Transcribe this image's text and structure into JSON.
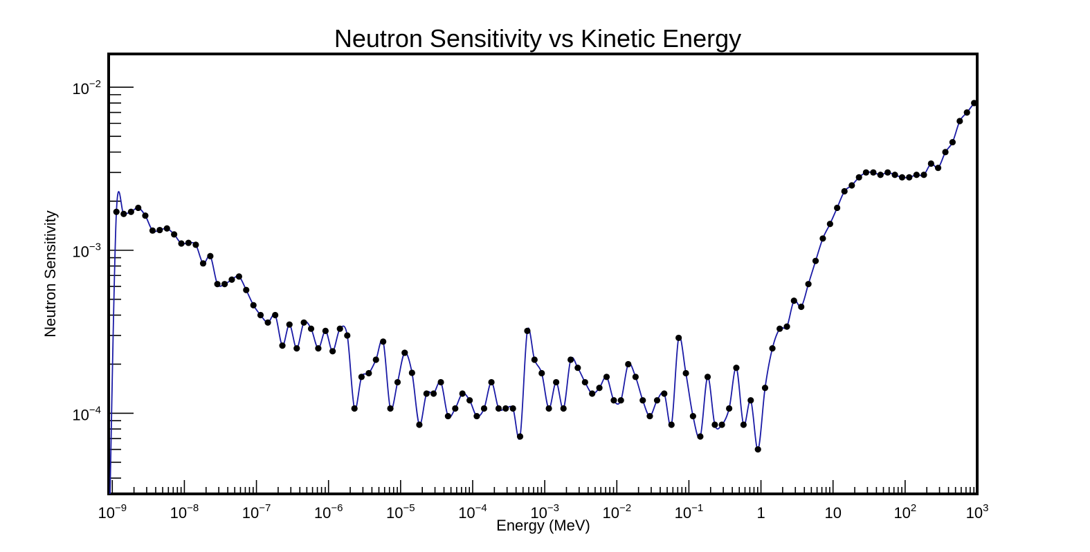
{
  "chart_data": {
    "type": "line",
    "title": "Neutron Sensitivity vs Kinetic Energy",
    "xlabel": "Energy (MeV)",
    "ylabel": "Neutron Sensitivity",
    "xscale": "log",
    "yscale": "log",
    "xlim": [
      8.9e-10,
      1000
    ],
    "ylim": [
      3.2e-05,
      0.016
    ],
    "x_tick_labels": [
      {
        "base": "10",
        "exp": "−9",
        "value": 1e-09
      },
      {
        "base": "10",
        "exp": "−8",
        "value": 1e-08
      },
      {
        "base": "10",
        "exp": "−7",
        "value": 1e-07
      },
      {
        "base": "10",
        "exp": "−6",
        "value": 1e-06
      },
      {
        "base": "10",
        "exp": "−5",
        "value": 1e-05
      },
      {
        "base": "10",
        "exp": "−4",
        "value": 0.0001
      },
      {
        "base": "10",
        "exp": "−3",
        "value": 0.001
      },
      {
        "base": "10",
        "exp": "−2",
        "value": 0.01
      },
      {
        "base": "10",
        "exp": "−1",
        "value": 0.1
      },
      {
        "base": "1",
        "exp": "",
        "value": 1
      },
      {
        "base": "10",
        "exp": "",
        "value": 10
      },
      {
        "base": "10",
        "exp": "2",
        "value": 100
      },
      {
        "base": "10",
        "exp": "3",
        "value": 1000
      }
    ],
    "y_tick_labels": [
      {
        "base": "10",
        "exp": "−4",
        "value": 0.0001
      },
      {
        "base": "10",
        "exp": "−3",
        "value": 0.001
      },
      {
        "base": "10",
        "exp": "−2",
        "value": 0.01
      }
    ],
    "grid": false,
    "legend": "none",
    "line_color": "#1a1aa6",
    "marker_color": "#000000",
    "series": [
      {
        "x": [
          1.14e-09,
          1.44e-09,
          1.82e-09,
          2.29e-09,
          2.87e-09,
          3.62e-09,
          4.55e-09,
          5.73e-09,
          7.21e-09,
          9.08e-09,
          1.14e-08,
          1.44e-08,
          1.82e-08,
          2.29e-08,
          2.87e-08,
          3.62e-08,
          4.55e-08,
          5.73e-08,
          7.21e-08,
          9.08e-08,
          1.14e-07,
          1.44e-07,
          1.82e-07,
          2.29e-07,
          2.87e-07,
          3.62e-07,
          4.55e-07,
          5.73e-07,
          7.21e-07,
          9.08e-07,
          1.14e-06,
          1.44e-06,
          1.82e-06,
          2.29e-06,
          2.87e-06,
          3.62e-06,
          4.55e-06,
          5.73e-06,
          7.21e-06,
          9.08e-06,
          1.14e-05,
          1.44e-05,
          1.82e-05,
          2.29e-05,
          2.87e-05,
          3.62e-05,
          4.55e-05,
          5.73e-05,
          7.21e-05,
          9.08e-05,
          0.000114,
          0.000144,
          0.000182,
          0.000229,
          0.000287,
          0.000362,
          0.000455,
          0.000573,
          0.000721,
          0.000908,
          0.00114,
          0.00144,
          0.00182,
          0.00229,
          0.00287,
          0.00362,
          0.00455,
          0.00573,
          0.00721,
          0.00908,
          0.0114,
          0.0144,
          0.0182,
          0.0229,
          0.0287,
          0.0362,
          0.0455,
          0.0573,
          0.0721,
          0.0908,
          0.114,
          0.144,
          0.182,
          0.229,
          0.287,
          0.362,
          0.455,
          0.573,
          0.721,
          0.908,
          1.14,
          1.44,
          1.82,
          2.29,
          2.87,
          3.62,
          4.55,
          5.73,
          7.21,
          9.08,
          11.4,
          14.4,
          18.2,
          22.9,
          28.7,
          36.2,
          45.5,
          57.3,
          72.1,
          90.8,
          114,
          144,
          182,
          229,
          287,
          362,
          455,
          573,
          721,
          908
        ],
        "y": [
          0.00172,
          0.00167,
          0.00172,
          0.00182,
          0.00163,
          0.00132,
          0.00133,
          0.00136,
          0.00125,
          0.0011,
          0.00111,
          0.00108,
          0.00083,
          0.00092,
          0.00062,
          0.00062,
          0.00066,
          0.00069,
          0.00057,
          0.00046,
          0.0004,
          0.00036,
          0.0004,
          0.00026,
          0.00035,
          0.00025,
          0.00036,
          0.00033,
          0.00025,
          0.00032,
          0.00024,
          0.00033,
          0.0003,
          0.000107,
          0.000167,
          0.000176,
          0.000213,
          0.000275,
          0.000107,
          0.000155,
          0.000235,
          0.000177,
          8.5e-05,
          0.000132,
          0.000132,
          0.000155,
          9.6e-05,
          0.000107,
          0.000132,
          0.00012,
          9.6e-05,
          0.000107,
          0.000155,
          0.000107,
          0.000107,
          0.000107,
          7.2e-05,
          0.00032,
          0.000213,
          0.000176,
          0.000107,
          0.000155,
          0.000107,
          0.000213,
          0.00019,
          0.000155,
          0.000132,
          0.000143,
          0.000167,
          0.00012,
          0.00012,
          0.0002,
          0.000167,
          0.00012,
          9.6e-05,
          0.00012,
          0.000132,
          8.5e-05,
          0.00029,
          0.000176,
          9.6e-05,
          7.2e-05,
          0.000167,
          8.5e-05,
          8.5e-05,
          0.000107,
          0.00019,
          8.5e-05,
          0.00012,
          6e-05,
          0.000143,
          0.00025,
          0.00033,
          0.00034,
          0.00049,
          0.00045,
          0.00062,
          0.00086,
          0.00118,
          0.00145,
          0.00182,
          0.0023,
          0.0025,
          0.0028,
          0.003,
          0.003,
          0.0029,
          0.003,
          0.0029,
          0.0028,
          0.0028,
          0.0029,
          0.0029,
          0.0034,
          0.0032,
          0.004,
          0.0046,
          0.0062,
          0.007,
          0.008
        ]
      }
    ]
  }
}
